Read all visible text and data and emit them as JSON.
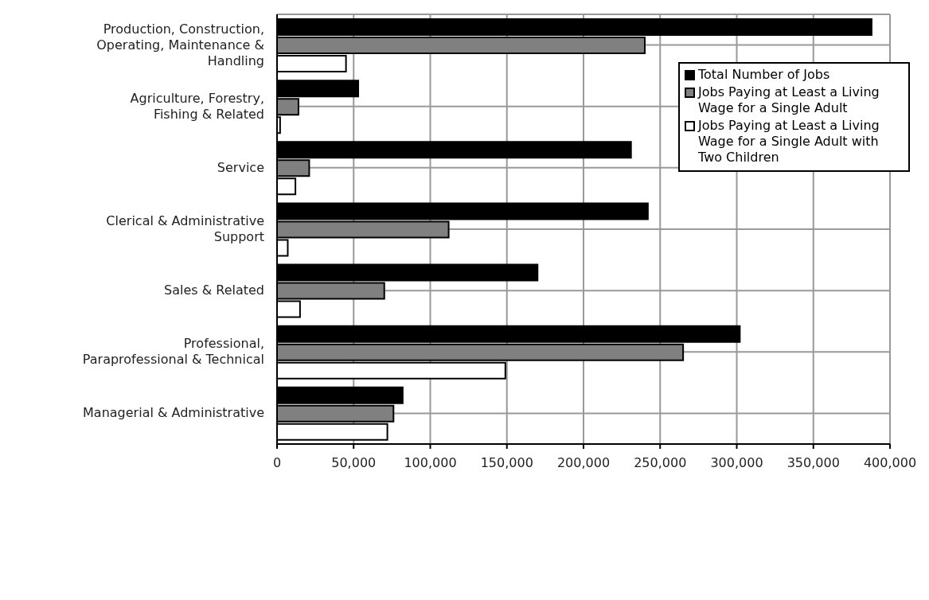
{
  "chart_data": {
    "type": "bar",
    "orientation": "horizontal",
    "categories": [
      "Production, Construction, Operating, Maintenance & Handling",
      "Agriculture, Forestry, Fishing & Related",
      "Service",
      "Clerical & Administrative Support",
      "Sales & Related",
      "Professional, Paraprofessional & Technical",
      "Managerial & Administrative"
    ],
    "series": [
      {
        "name": "Total Number of Jobs",
        "color": "#000000",
        "values": [
          388000,
          53000,
          231000,
          242000,
          170000,
          302000,
          82000
        ]
      },
      {
        "name": "Jobs Paying at Least a Living Wage for a Single Adult",
        "color": "#808080",
        "values": [
          240000,
          14000,
          21000,
          112000,
          70000,
          265000,
          76000
        ]
      },
      {
        "name": "Jobs Paying at Least a Living Wage for a Single Adult with Two Children",
        "color": "#ffffff",
        "values": [
          45000,
          2000,
          12000,
          7000,
          15000,
          149000,
          72000
        ]
      }
    ],
    "xlim": [
      0,
      400000
    ],
    "xticks": [
      {
        "value": 0,
        "label": "0"
      },
      {
        "value": 50000,
        "label": "50,000"
      },
      {
        "value": 100000,
        "label": "100,000"
      },
      {
        "value": 150000,
        "label": "150,000"
      },
      {
        "value": 200000,
        "label": "200,000"
      },
      {
        "value": 250000,
        "label": "250,000"
      },
      {
        "value": 300000,
        "label": "300,000"
      },
      {
        "value": 350000,
        "label": "350,000"
      },
      {
        "value": 400000,
        "label": "400,000"
      }
    ],
    "grid": true,
    "legend": "top right"
  }
}
